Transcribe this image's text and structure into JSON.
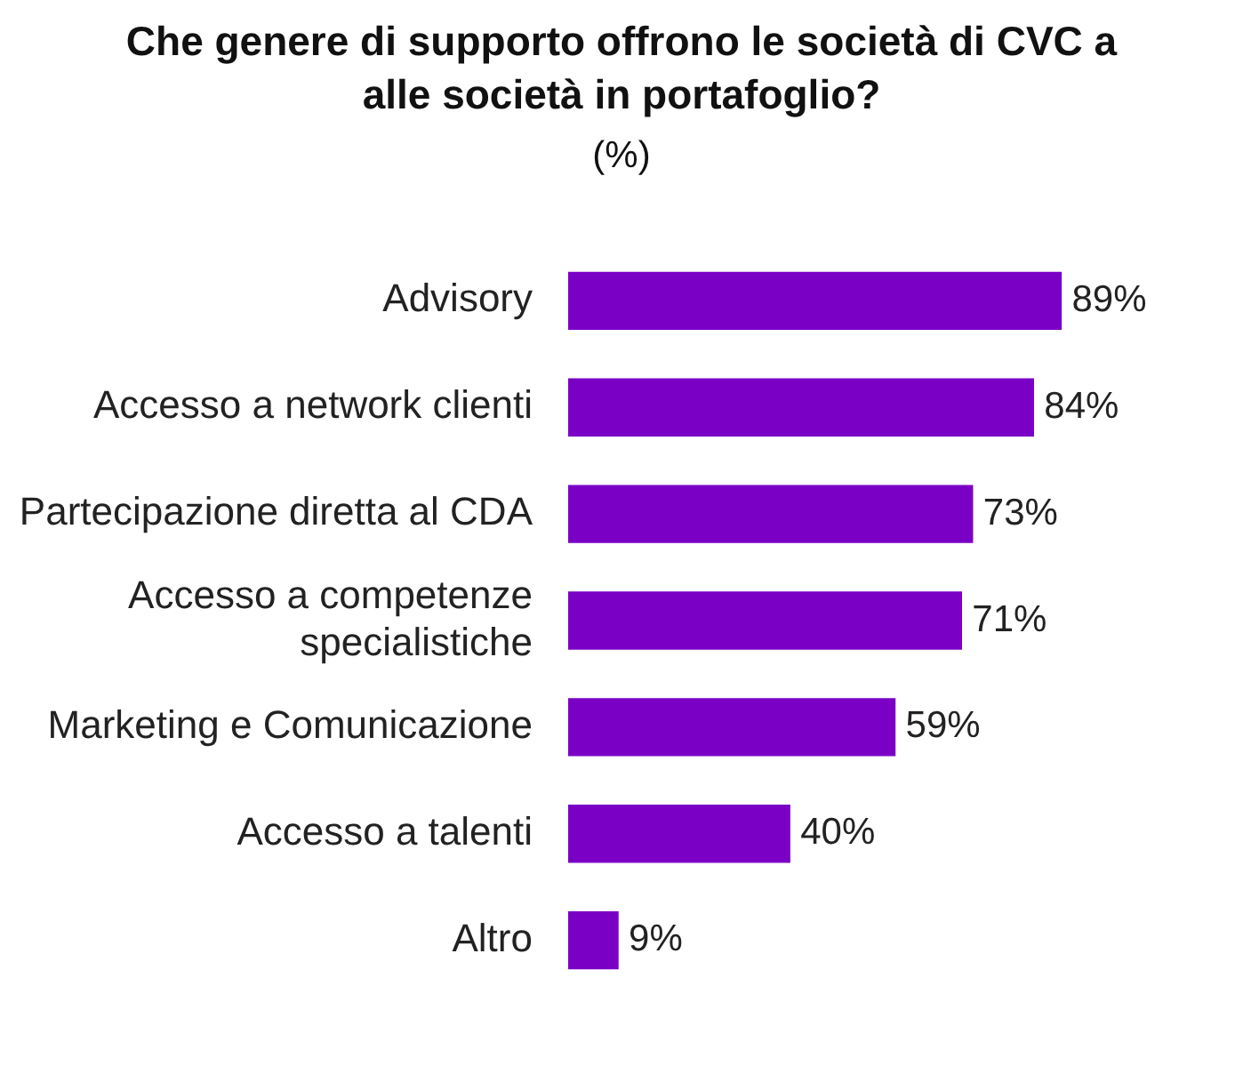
{
  "chart_data": {
    "type": "bar",
    "orientation": "horizontal",
    "title": "Che genere di supporto offrono le società di CVC a alle società in portafoglio?",
    "subtitle": "(%)",
    "categories": [
      "Advisory",
      "Accesso a network clienti",
      "Partecipazione diretta al CDA",
      "Accesso a competenze specialistiche",
      "Marketing e Comunicazione",
      "Accesso a talenti",
      "Altro"
    ],
    "values": [
      89,
      84,
      73,
      71,
      59,
      40,
      9
    ],
    "value_labels": [
      "89%",
      "84%",
      "73%",
      "71%",
      "59%",
      "40%",
      "9%"
    ],
    "color": "#7a00c6"
  }
}
